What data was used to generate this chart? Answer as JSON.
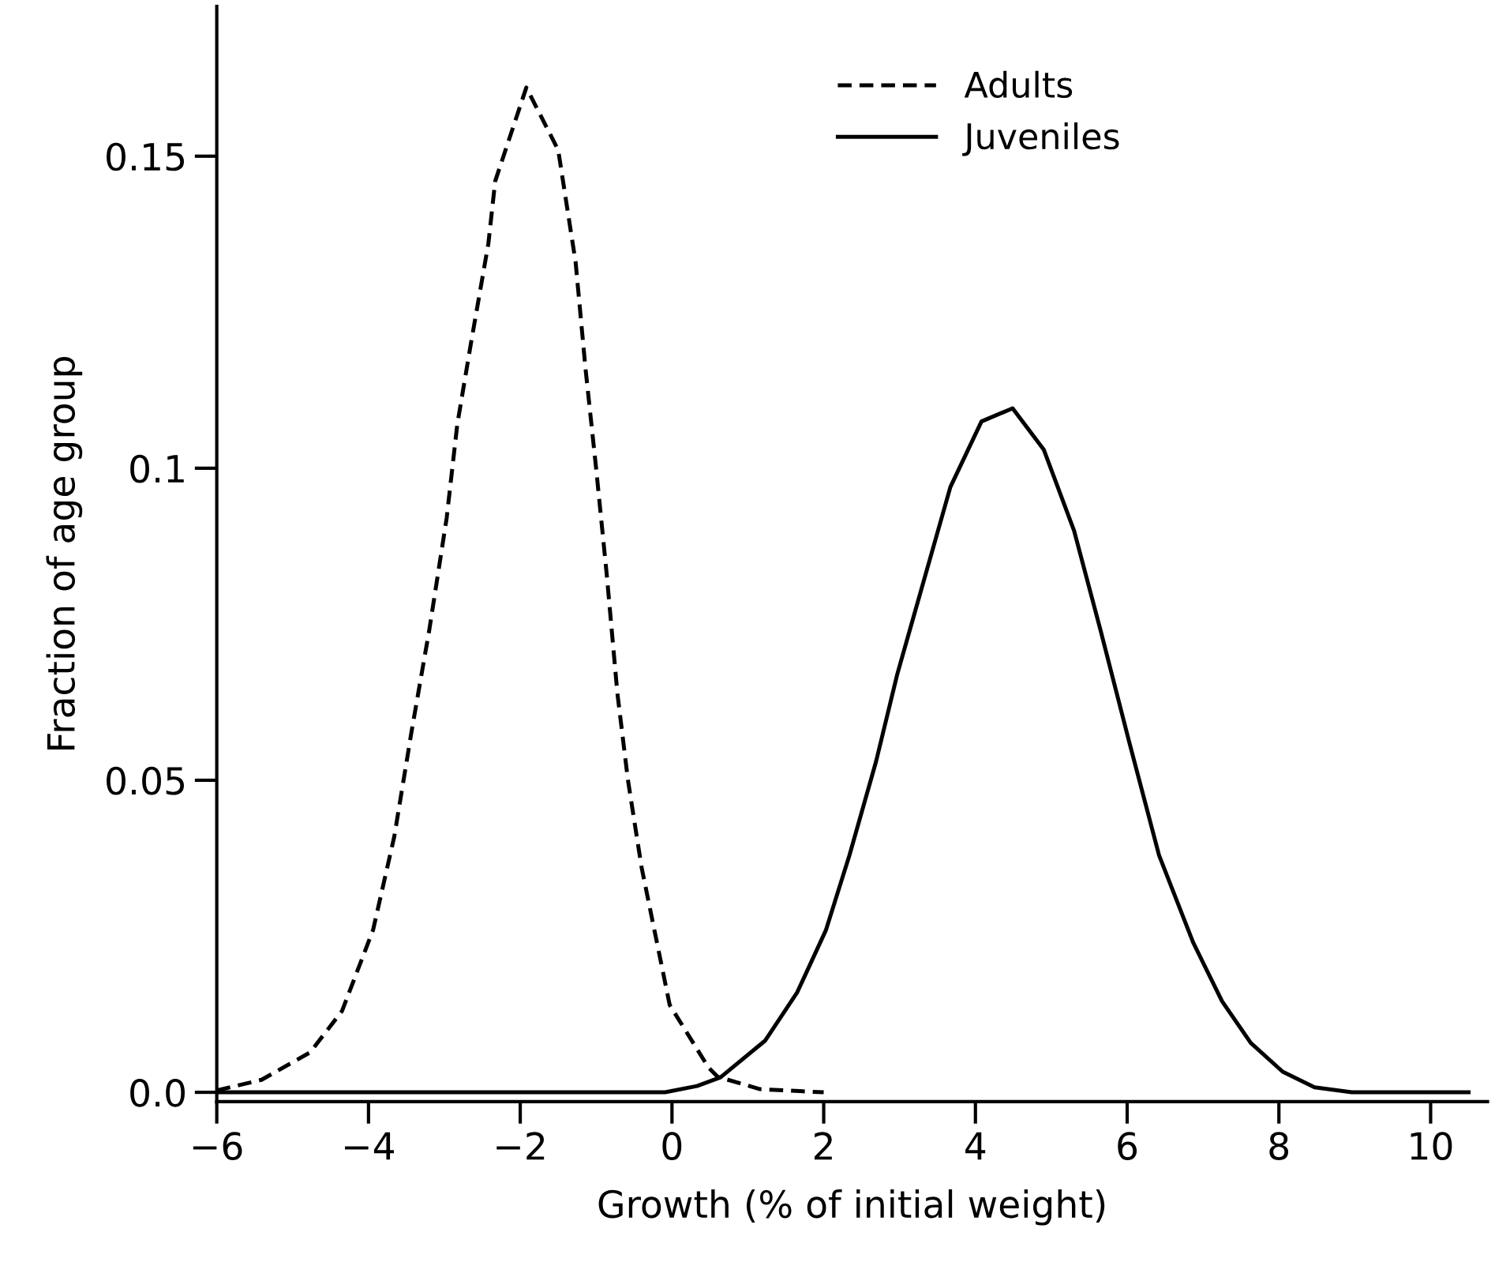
{
  "chart_data": {
    "type": "line",
    "xlabel": "Growth (% of initial weight)",
    "ylabel": "Fraction of age group",
    "xlim": [
      -6,
      10.75
    ],
    "ylim": [
      -0.0015,
      0.174
    ],
    "xticks": [
      {
        "value": -6,
        "label": "−6"
      },
      {
        "value": -4,
        "label": "−4"
      },
      {
        "value": -2,
        "label": "−2"
      },
      0,
      2,
      4,
      6,
      8,
      10
    ],
    "yticks": [
      {
        "value": 0,
        "label": "0.0"
      },
      0.05,
      0.1,
      0.15
    ],
    "grid": false,
    "legend": "top",
    "marker": "none",
    "series": [
      {
        "name": "Adults",
        "color": "#000000",
        "line_style": "dashed",
        "x": [
          -6.0,
          -5.41,
          -4.77,
          -4.35,
          -3.94,
          -3.66,
          -3.43,
          -3.2,
          -2.97,
          -2.83,
          -2.65,
          -2.42,
          -2.33,
          -1.92,
          -1.5,
          -1.27,
          -1.14,
          -1.0,
          -0.86,
          -0.72,
          -0.58,
          -0.4,
          -0.03,
          0.48,
          0.6,
          1.16,
          2.0
        ],
        "values": [
          0.0003,
          0.002,
          0.0064,
          0.013,
          0.026,
          0.041,
          0.058,
          0.074,
          0.092,
          0.107,
          0.12,
          0.136,
          0.146,
          0.161,
          0.151,
          0.133,
          0.116,
          0.1,
          0.083,
          0.064,
          0.05,
          0.036,
          0.014,
          0.004,
          0.0025,
          0.0005,
          0.0
        ]
      },
      {
        "name": "Juveniles",
        "color": "#000000",
        "line_style": "solid",
        "x": [
          -6.0,
          -1.0,
          -0.09,
          0.33,
          0.64,
          1.23,
          1.65,
          2.03,
          2.34,
          2.69,
          2.97,
          3.18,
          3.67,
          4.08,
          4.49,
          4.9,
          5.3,
          5.65,
          6.03,
          6.42,
          6.87,
          7.25,
          7.63,
          8.05,
          8.47,
          8.96,
          10.5
        ],
        "values": [
          0.0,
          0.0,
          0.0,
          0.001,
          0.0024,
          0.0083,
          0.016,
          0.026,
          0.038,
          0.053,
          0.067,
          0.076,
          0.097,
          0.1075,
          0.1096,
          0.103,
          0.09,
          0.074,
          0.056,
          0.038,
          0.024,
          0.0146,
          0.0079,
          0.0033,
          0.0008,
          0.0,
          0.0
        ]
      }
    ]
  }
}
